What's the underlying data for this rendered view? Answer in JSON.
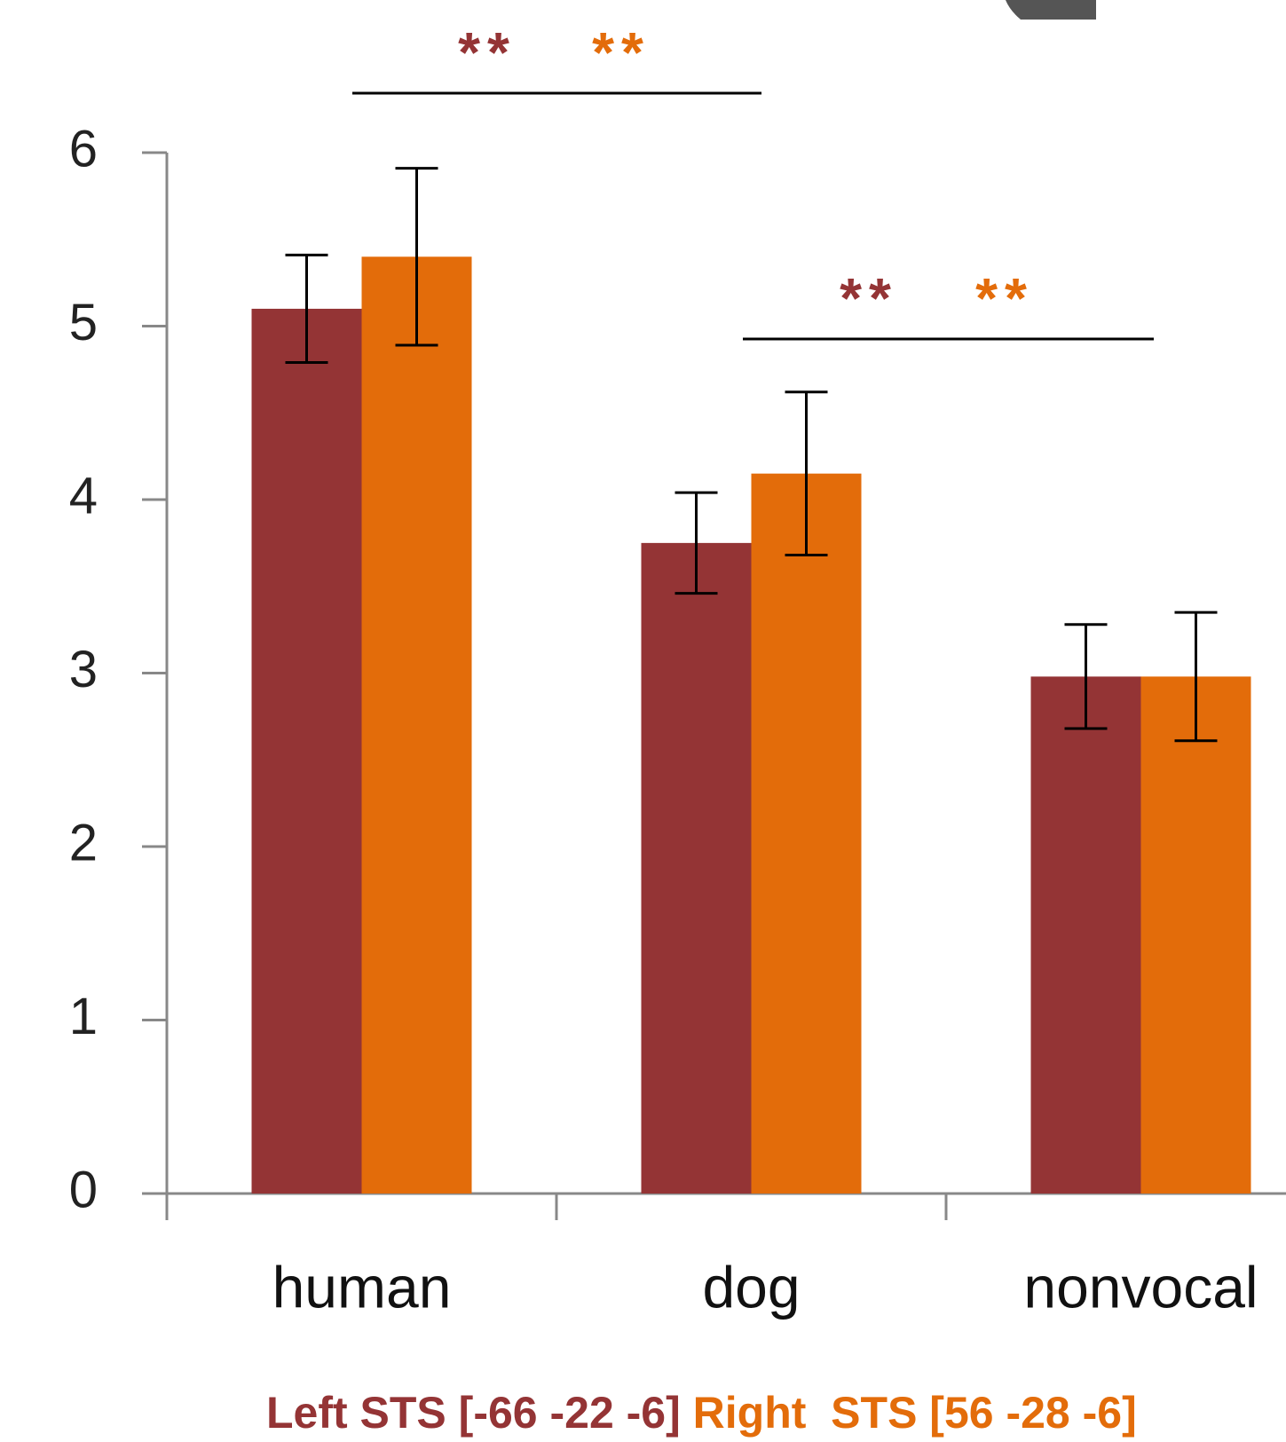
{
  "chart_data": {
    "type": "bar",
    "categories": [
      "human",
      "dog",
      "nonvocal"
    ],
    "series": [
      {
        "name": "Left STS [-66 -22 -6]",
        "color": "#943435",
        "values": [
          5.1,
          3.75,
          2.98
        ],
        "errors": [
          0.31,
          0.29,
          0.3
        ]
      },
      {
        "name": "Right  STS [56 -28 -6]",
        "color": "#e36c0a",
        "values": [
          5.4,
          4.15,
          2.98
        ],
        "errors": [
          0.51,
          0.47,
          0.37
        ]
      }
    ],
    "ylim": [
      0,
      6
    ],
    "yticks": [
      0,
      1,
      2,
      3,
      4,
      5,
      6
    ],
    "annotations": [
      "**",
      "**",
      "**",
      "**"
    ]
  }
}
